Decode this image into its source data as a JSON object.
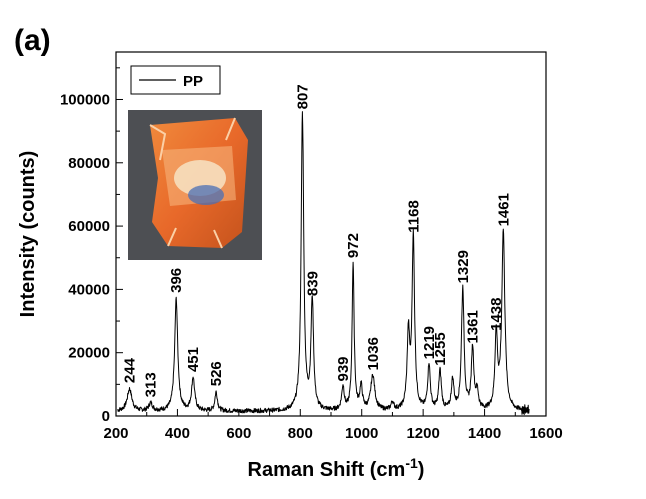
{
  "panel_label": "(a)",
  "chart_data": {
    "type": "line",
    "xlabel": "Raman Shift (cm",
    "xlabel_sup": "-1",
    "xlabel_end": ")",
    "ylabel": "Intensity (counts)",
    "xlim": [
      200,
      1600
    ],
    "ylim": [
      0,
      115000
    ],
    "x_ticks": [
      200,
      400,
      600,
      800,
      1000,
      1200,
      1400,
      1600
    ],
    "y_ticks": [
      0,
      20000,
      40000,
      60000,
      80000,
      100000
    ],
    "x_tick_labels": [
      "200",
      "400",
      "600",
      "800",
      "1000",
      "1200",
      "1400",
      "1600"
    ],
    "y_tick_labels": [
      "0",
      "20000",
      "40000",
      "60000",
      "80000",
      "100000"
    ],
    "legend": {
      "entries": [
        "PP"
      ],
      "placement": "top-left"
    },
    "inset_image": "photo of orange plastic snack wrapper",
    "baseline": 1500,
    "series": [
      {
        "name": "PP",
        "color": "#000000",
        "x_range": [
          205,
          1545
        ],
        "peaks": [
          {
            "x": 244,
            "y": 8500,
            "w": 9,
            "label": "244"
          },
          {
            "x": 313,
            "y": 4000,
            "w": 7,
            "label": "313"
          },
          {
            "x": 396,
            "y": 37000,
            "w": 6,
            "label": "396"
          },
          {
            "x": 451,
            "y": 12000,
            "w": 6,
            "label": "451"
          },
          {
            "x": 526,
            "y": 7500,
            "w": 5,
            "label": "526"
          },
          {
            "x": 807,
            "y": 95000,
            "w": 5,
            "label": "807"
          },
          {
            "x": 839,
            "y": 36000,
            "w": 5,
            "label": "839"
          },
          {
            "x": 939,
            "y": 9000,
            "w": 5,
            "label": "939"
          },
          {
            "x": 972,
            "y": 48000,
            "w": 4,
            "label": "972"
          },
          {
            "x": 998,
            "y": 9000,
            "w": 5,
            "label": ""
          },
          {
            "x": 1036,
            "y": 12500,
            "w": 8,
            "label": "1036"
          },
          {
            "x": 1100,
            "y": 4000,
            "w": 5,
            "label": ""
          },
          {
            "x": 1152,
            "y": 25000,
            "w": 5,
            "label": ""
          },
          {
            "x": 1168,
            "y": 56000,
            "w": 5,
            "label": "1168"
          },
          {
            "x": 1219,
            "y": 16000,
            "w": 5,
            "label": "1219"
          },
          {
            "x": 1255,
            "y": 14000,
            "w": 5,
            "label": "1255"
          },
          {
            "x": 1296,
            "y": 11000,
            "w": 5,
            "label": ""
          },
          {
            "x": 1329,
            "y": 40000,
            "w": 5,
            "label": "1329"
          },
          {
            "x": 1361,
            "y": 21000,
            "w": 5,
            "label": "1361"
          },
          {
            "x": 1376,
            "y": 7000,
            "w": 5,
            "label": ""
          },
          {
            "x": 1438,
            "y": 25000,
            "w": 5,
            "label": "1438"
          },
          {
            "x": 1461,
            "y": 58000,
            "w": 6,
            "label": "1461"
          }
        ]
      }
    ]
  }
}
